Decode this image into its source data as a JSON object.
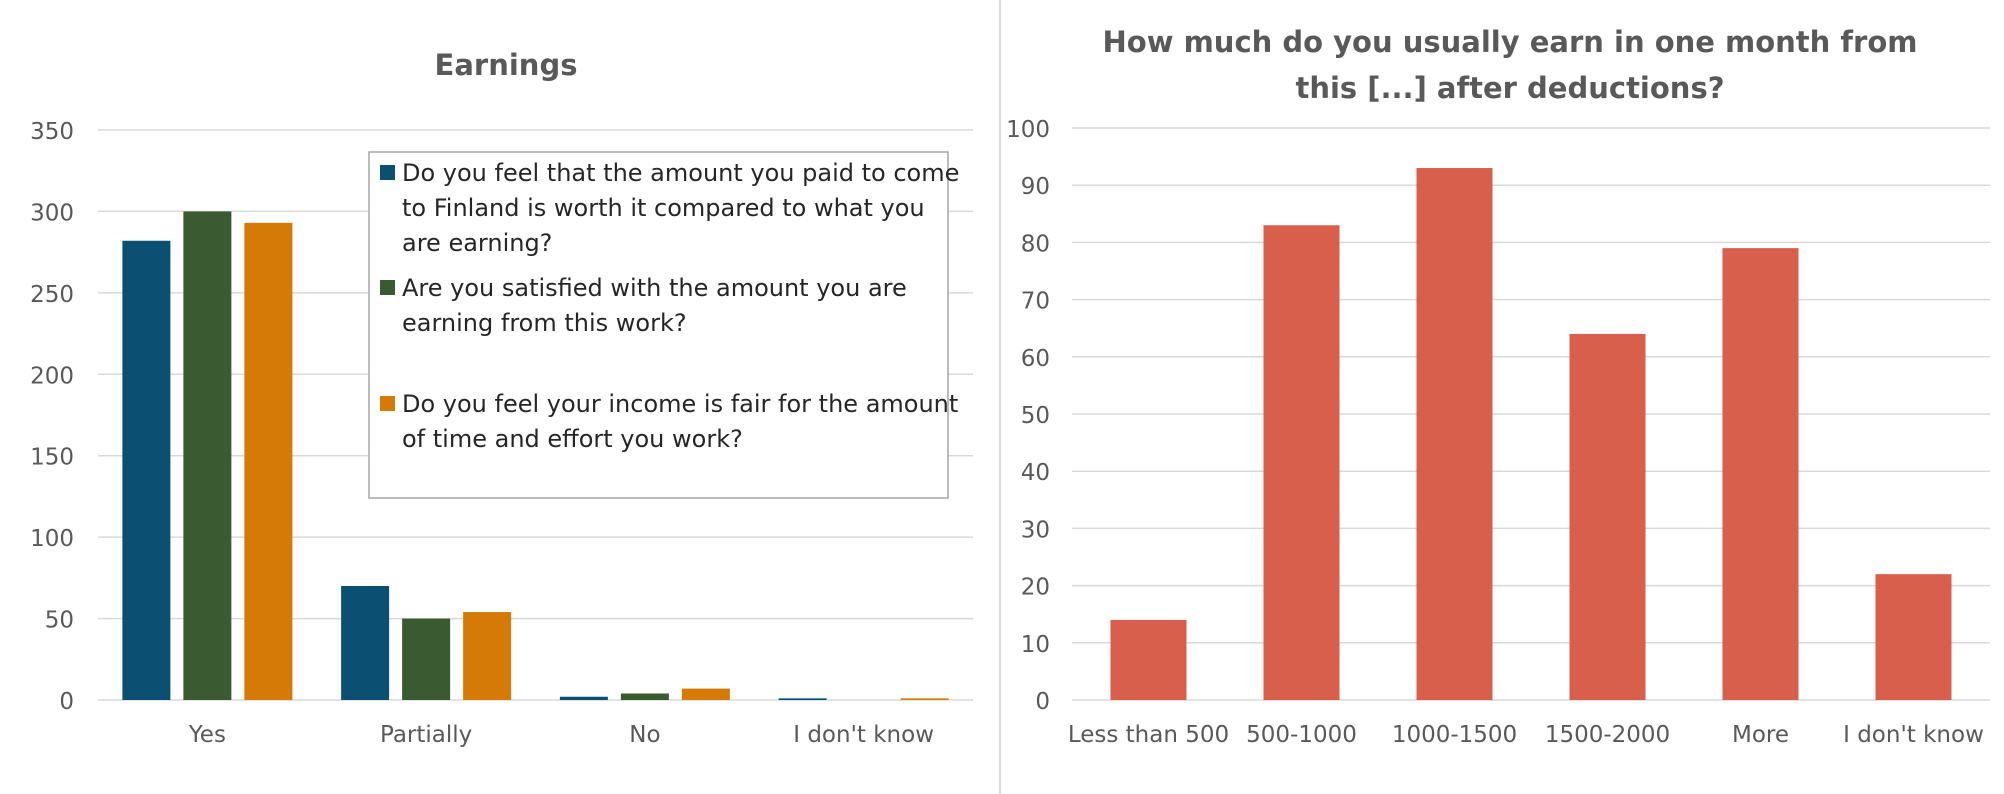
{
  "chart_data": [
    {
      "type": "bar",
      "title": "Earnings",
      "xlabel": "",
      "ylabel": "",
      "ylim": [
        0,
        350
      ],
      "yticks": [
        "0",
        "50",
        "100",
        "150",
        "200",
        "250",
        "300",
        "350"
      ],
      "categories": [
        "Yes",
        "Partially",
        "No",
        "I don't know"
      ],
      "grid": true,
      "legend_position": "top-right",
      "series": [
        {
          "name_lines": [
            "Do you feel that the amount you paid to come",
            "to Finland is worth it compared to what you",
            "are earning?"
          ],
          "color": "#0b4f72",
          "values": [
            282,
            70,
            2,
            1
          ]
        },
        {
          "name_lines": [
            "Are you satisfied with the amount you are",
            "earning from this work?"
          ],
          "color": "#3a5a32",
          "values": [
            300,
            50,
            4,
            0
          ]
        },
        {
          "name_lines": [
            "Do you feel your income is fair for the amount",
            "of time and effort you work?"
          ],
          "color": "#d67a07",
          "values": [
            293,
            54,
            7,
            1
          ]
        }
      ]
    },
    {
      "type": "bar",
      "title_lines": [
        "How much do you usually earn in one month from",
        "this [...] after deductions?"
      ],
      "xlabel": "",
      "ylabel": "",
      "ylim": [
        0,
        100
      ],
      "yticks": [
        "0",
        "10",
        "20",
        "30",
        "40",
        "50",
        "60",
        "70",
        "80",
        "90",
        "100"
      ],
      "categories": [
        "Less than 500",
        "500-1000",
        "1000-1500",
        "1500-2000",
        "More",
        "I don't know"
      ],
      "grid": true,
      "color": "#d95f4d",
      "values": [
        14,
        83,
        93,
        64,
        79,
        22
      ]
    }
  ]
}
